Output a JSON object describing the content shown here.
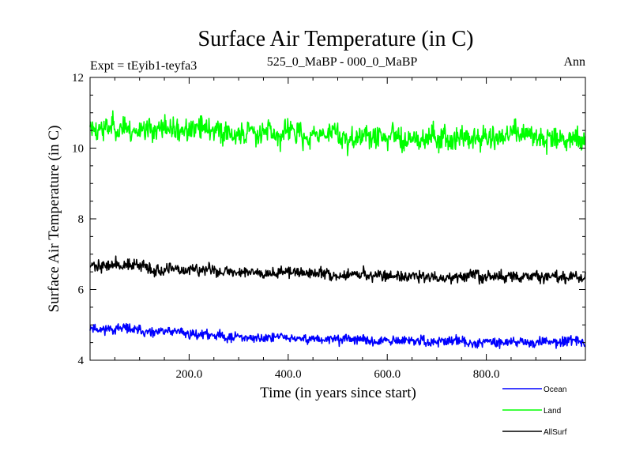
{
  "chart_data": {
    "type": "line",
    "title": "Surface Air Temperature (in C)",
    "experiment": "Expt = tEyib1-teyfa3",
    "subtitle": "525_0_MaBP - 000_0_MaBP",
    "season": "Ann",
    "xlabel": "Time (in years since start)",
    "ylabel": "Surface Air Temperature (in C)",
    "xlim": [
      0,
      1000
    ],
    "ylim": [
      4,
      12
    ],
    "x_ticks": [
      200,
      400,
      600,
      800
    ],
    "x_tick_labels": [
      "200.0",
      "400.0",
      "600.0",
      "800.0"
    ],
    "y_ticks": [
      4,
      6,
      8,
      10,
      12
    ],
    "y_tick_labels": [
      "4",
      "6",
      "8",
      "10",
      "12"
    ],
    "n_years": 1000,
    "legend_position": "bottom-right",
    "series": [
      {
        "name": "Ocean",
        "color": "#0000ff",
        "mean_start": 4.95,
        "mean_end": 4.5,
        "noise": 0.09,
        "seed": 11
      },
      {
        "name": "Land",
        "color": "#00ff00",
        "mean_start": 10.65,
        "mean_end": 10.3,
        "noise": 0.22,
        "seed": 23
      },
      {
        "name": "AllSurf",
        "color": "#000000",
        "mean_start": 6.75,
        "mean_end": 6.35,
        "noise": 0.11,
        "seed": 37
      }
    ]
  }
}
